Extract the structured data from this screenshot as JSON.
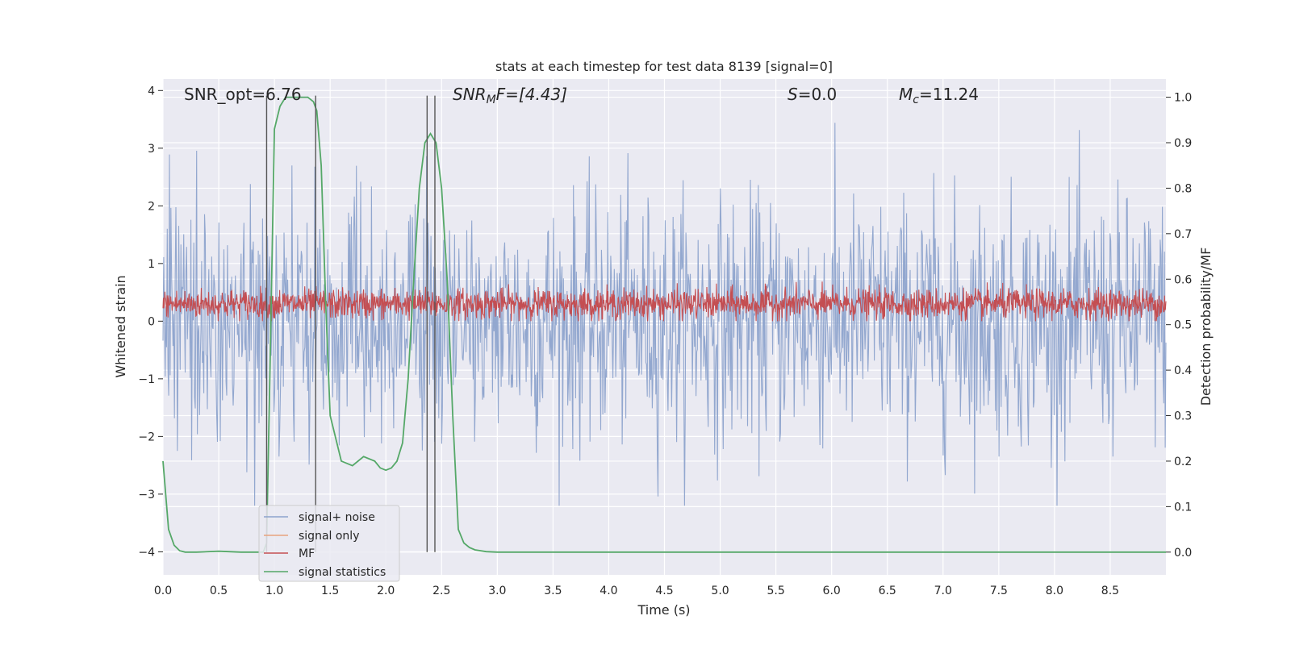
{
  "chart_data": {
    "type": "line",
    "title": "stats at each timestep for test data 8139 [signal=0]",
    "xlabel": "Time (s)",
    "ylabel": "Whitened strain",
    "ylabel_right": "Detection probability/MF",
    "xlim": [
      0.0,
      9.0
    ],
    "ylim": [
      -4.4,
      4.2
    ],
    "ylim_right": [
      -0.05,
      1.04
    ],
    "xticks": [
      "0.0",
      "0.5",
      "1.0",
      "1.5",
      "2.0",
      "2.5",
      "3.0",
      "3.5",
      "4.0",
      "4.5",
      "5.0",
      "5.5",
      "6.0",
      "6.5",
      "7.0",
      "7.5",
      "8.0",
      "8.5"
    ],
    "yticks": [
      "4",
      "3",
      "2",
      "1",
      "0",
      "−1",
      "−2",
      "−3",
      "−4"
    ],
    "yticks_right": [
      "1.0",
      "0.9",
      "0.8",
      "0.7",
      "0.6",
      "0.5",
      "0.4",
      "0.3",
      "0.2",
      "0.1",
      "0.0"
    ],
    "grid": true,
    "legend_position": "lower-left",
    "annotations": {
      "snr_opt": "SNR_opt=6.76",
      "snr_mf_main": "SNR",
      "snr_mf_sub": "M",
      "snr_mf_rest": "F=[4.43]",
      "s_main": "S",
      "s_rest": "=0.0",
      "mc_main": "M",
      "mc_sub": "c",
      "mc_rest": "=11.24"
    },
    "series": [
      {
        "name": "signal+ noise",
        "color": "#8DA3CC",
        "style": "dense noise, amplitude ~±3.5",
        "noise_range": [
          -3.2,
          3.9
        ]
      },
      {
        "name": "signal only",
        "color": "#E8A37E",
        "values": []
      },
      {
        "name": "MF",
        "color": "#C44E52",
        "style": "dense noise around 0.3",
        "mean": 0.3,
        "range": [
          0.0,
          1.0
        ]
      },
      {
        "name": "signal statistics",
        "color": "#55A868",
        "axis": "right",
        "x": [
          0.0,
          0.05,
          0.1,
          0.15,
          0.2,
          0.3,
          0.5,
          0.7,
          0.9,
          0.93,
          0.96,
          1.0,
          1.05,
          1.1,
          1.2,
          1.3,
          1.35,
          1.38,
          1.42,
          1.46,
          1.5,
          1.6,
          1.7,
          1.8,
          1.9,
          1.95,
          2.0,
          2.05,
          2.1,
          2.15,
          2.2,
          2.25,
          2.3,
          2.35,
          2.4,
          2.45,
          2.5,
          2.55,
          2.6,
          2.65,
          2.7,
          2.75,
          2.8,
          2.9,
          3.0,
          3.5,
          9.0
        ],
        "values": [
          0.2,
          0.05,
          0.015,
          0.003,
          0.0,
          0.0,
          0.002,
          0.0,
          0.0,
          0.02,
          0.4,
          0.93,
          0.98,
          1.0,
          1.0,
          1.0,
          0.99,
          0.97,
          0.85,
          0.55,
          0.3,
          0.2,
          0.19,
          0.21,
          0.2,
          0.185,
          0.18,
          0.185,
          0.2,
          0.24,
          0.38,
          0.6,
          0.8,
          0.9,
          0.92,
          0.9,
          0.8,
          0.6,
          0.3,
          0.05,
          0.02,
          0.01,
          0.005,
          0.001,
          0.0,
          0.0,
          0.0
        ]
      }
    ],
    "vertical_lines_x": [
      0.93,
      1.37,
      2.37,
      2.44
    ]
  }
}
